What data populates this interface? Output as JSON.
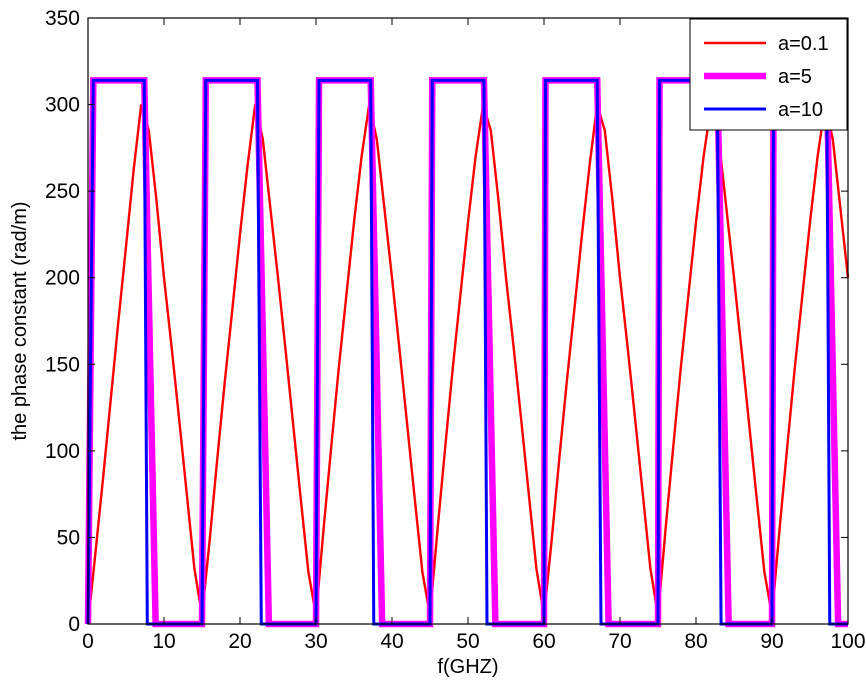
{
  "chart_data": {
    "type": "line",
    "title": "",
    "xlabel": "f(GHZ)",
    "ylabel": "the phase constant (rad/m)",
    "xlim": [
      0,
      100
    ],
    "ylim": [
      0,
      350
    ],
    "xticks": [
      0,
      10,
      20,
      30,
      40,
      50,
      60,
      70,
      80,
      90,
      100
    ],
    "yticks": [
      0,
      50,
      100,
      150,
      200,
      250,
      300,
      350
    ],
    "grid": false,
    "legend_position": "top-right",
    "series": [
      {
        "name": "a=0.1",
        "color": "#ff0000",
        "x": [
          0,
          1,
          2,
          3,
          4,
          5,
          6,
          7,
          8,
          9,
          10,
          11,
          12,
          13,
          14,
          15,
          16,
          17,
          18,
          19,
          20,
          21,
          22,
          23,
          24,
          25,
          26,
          27,
          28,
          29,
          30,
          31,
          32,
          33,
          34,
          35,
          36,
          37,
          38,
          39,
          40,
          41,
          42,
          43,
          44,
          45,
          46,
          47,
          48,
          49,
          50,
          51,
          52,
          53,
          54,
          55,
          56,
          57,
          58,
          59,
          60,
          61,
          62,
          63,
          64,
          65,
          66,
          67,
          68,
          69,
          70,
          71,
          72,
          73,
          74,
          75,
          76,
          77,
          78,
          79,
          80,
          81,
          82,
          83,
          84,
          85,
          86,
          87,
          88,
          89,
          90,
          91,
          92,
          93,
          94,
          95,
          96,
          97,
          98,
          99,
          100
        ],
        "values": [
          0,
          42,
          85,
          130,
          175,
          218,
          262,
          300,
          285,
          245,
          200,
          160,
          118,
          75,
          32,
          5,
          48,
          95,
          140,
          182,
          225,
          265,
          300,
          280,
          240,
          200,
          158,
          115,
          72,
          30,
          5,
          55,
          102,
          148,
          190,
          232,
          270,
          300,
          280,
          240,
          200,
          158,
          115,
          72,
          30,
          5,
          55,
          102,
          148,
          190,
          232,
          270,
          300,
          285,
          245,
          200,
          160,
          118,
          75,
          32,
          5,
          48,
          95,
          140,
          182,
          225,
          265,
          300,
          285,
          245,
          200,
          160,
          118,
          75,
          32,
          5,
          55,
          102,
          148,
          190,
          232,
          270,
          300,
          280,
          240,
          200,
          158,
          115,
          72,
          30,
          5,
          55,
          102,
          148,
          190,
          232,
          270,
          300,
          280,
          240,
          200
        ]
      },
      {
        "name": "a=5",
        "color": "#ff00ff",
        "x": [
          0,
          0.7,
          7.4,
          8.9,
          15,
          15.5,
          22.3,
          23.8,
          30,
          30.4,
          37.2,
          38.7,
          45,
          45.3,
          52.1,
          53.6,
          60,
          60.2,
          67,
          68.5,
          75,
          75.2,
          82.8,
          84.3,
          90,
          90.2,
          97.2,
          98.7,
          100
        ],
        "values": [
          0,
          314,
          314,
          0,
          0,
          314,
          314,
          0,
          0,
          314,
          314,
          0,
          0,
          314,
          314,
          0,
          0,
          314,
          314,
          0,
          0,
          314,
          314,
          0,
          0,
          314,
          314,
          0,
          0
        ]
      },
      {
        "name": "a=10",
        "color": "#0000ff",
        "x": [
          0,
          0.7,
          7.4,
          7.8,
          15,
          15.5,
          22.3,
          22.8,
          30,
          30.4,
          37.2,
          37.6,
          45,
          45.3,
          52.1,
          52.5,
          60,
          60.2,
          67,
          67.5,
          75,
          75.2,
          82.8,
          83.3,
          90,
          90.2,
          97.2,
          97.6,
          100
        ],
        "values": [
          0,
          314,
          314,
          0,
          0,
          314,
          314,
          0,
          0,
          314,
          314,
          0,
          0,
          314,
          314,
          0,
          0,
          314,
          314,
          0,
          0,
          314,
          314,
          0,
          0,
          314,
          314,
          0,
          0
        ]
      }
    ]
  }
}
